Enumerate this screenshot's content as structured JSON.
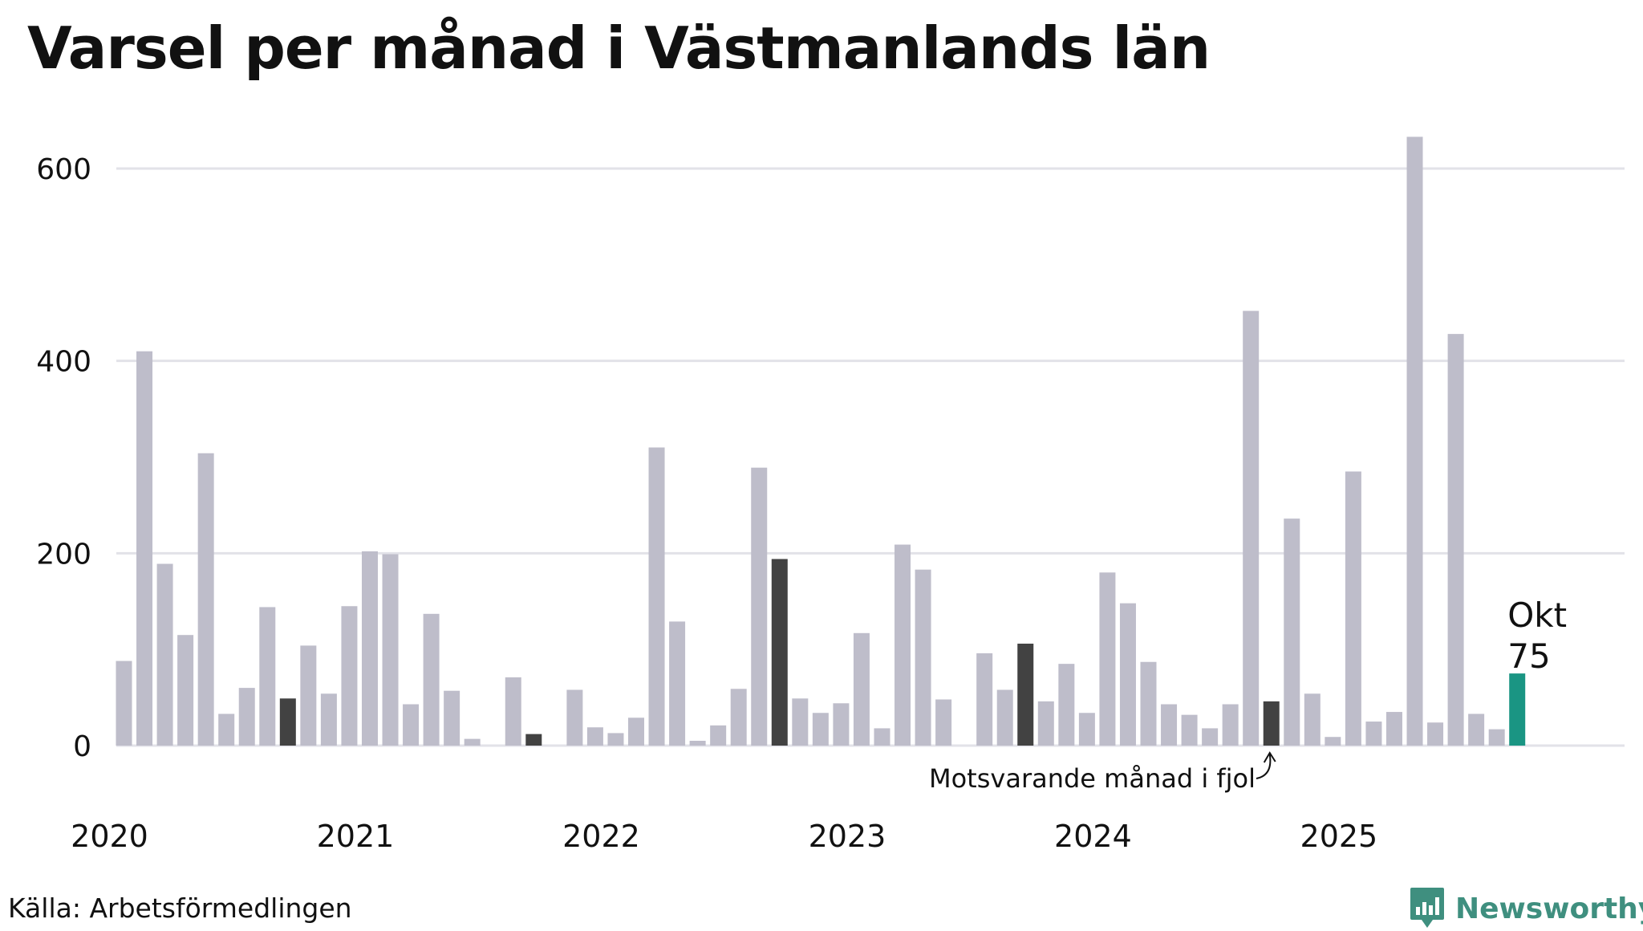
{
  "title": "Varsel per månad i Västmanlands län",
  "source": "Källa: Arbetsförmedlingen",
  "brand": {
    "name": "Newsworthy",
    "icon": "newsworthy-logo-icon"
  },
  "colors": {
    "bar": "#bebdca",
    "highlight": "#424242",
    "current": "#1a9583",
    "grid": "#e2e2e8",
    "brand": "#3f8f7f",
    "text": "#111111"
  },
  "chart_data": {
    "type": "bar",
    "title": "Varsel per månad i Västmanlands län",
    "xlabel": "",
    "ylabel": "",
    "ylim": [
      0,
      650
    ],
    "yticks": [
      0,
      200,
      400,
      600
    ],
    "ytick_labels": [
      "0",
      "200",
      "400",
      "600"
    ],
    "grid": true,
    "year_labels": [
      "2020",
      "2021",
      "2022",
      "2023",
      "2024",
      "2025"
    ],
    "series": [
      {
        "name": "Varsel",
        "values": [
          88,
          410,
          189,
          115,
          304,
          33,
          60,
          144,
          49,
          104,
          54,
          145,
          202,
          199,
          43,
          137,
          57,
          7,
          0,
          71,
          12,
          0,
          58,
          19,
          13,
          29,
          310,
          129,
          5,
          21,
          59,
          289,
          194,
          49,
          34,
          44,
          117,
          18,
          209,
          183,
          48,
          0,
          96,
          58,
          106,
          46,
          85,
          34,
          180,
          148,
          87,
          43,
          32,
          18,
          43,
          452,
          46,
          236,
          54,
          9,
          285,
          25,
          35,
          633,
          24,
          428,
          33,
          17,
          75
        ]
      }
    ],
    "highlight_indices": [
      8,
      20,
      32,
      44,
      56
    ],
    "current_index": 68,
    "annotations": {
      "current_month": "Okt",
      "current_value": "75",
      "last_year_label": "Motsvarande månad i fjol"
    }
  }
}
